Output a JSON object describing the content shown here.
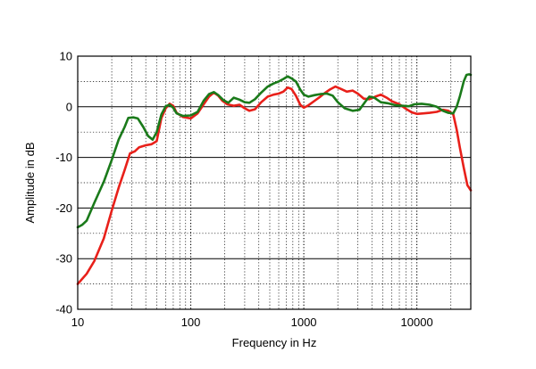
{
  "chart_data": {
    "type": "line",
    "title": "",
    "xlabel": "Frequency in Hz",
    "ylabel": "Amplitude in dB",
    "xscale": "log",
    "xlim": [
      10,
      30000
    ],
    "ylim": [
      -40,
      10
    ],
    "x_ticks": [
      10,
      100,
      1000,
      10000
    ],
    "x_tick_labels": [
      "10",
      "100",
      "1000",
      "10000"
    ],
    "y_ticks": [
      10,
      0,
      -10,
      -20,
      -30,
      -40
    ],
    "y_tick_labels": [
      "10",
      "0",
      "-10",
      "-20",
      "-30",
      "-40"
    ],
    "grid": true,
    "legend": "none",
    "series": [
      {
        "color": "#e8201a",
        "points": [
          [
            10,
            -35
          ],
          [
            12,
            -33
          ],
          [
            14,
            -30.5
          ],
          [
            17,
            -26
          ],
          [
            20,
            -20.5
          ],
          [
            23,
            -16
          ],
          [
            26,
            -12.5
          ],
          [
            29,
            -9.2
          ],
          [
            32,
            -8.8
          ],
          [
            35,
            -8.0
          ],
          [
            40,
            -7.6
          ],
          [
            45,
            -7.4
          ],
          [
            50,
            -6.8
          ],
          [
            55,
            -2.2
          ],
          [
            60,
            -0.3
          ],
          [
            65,
            0.6
          ],
          [
            70,
            0.2
          ],
          [
            75,
            -1.2
          ],
          [
            85,
            -2.0
          ],
          [
            100,
            -2.3
          ],
          [
            115,
            -1.3
          ],
          [
            130,
            0.5
          ],
          [
            145,
            2.0
          ],
          [
            160,
            2.8
          ],
          [
            175,
            2.2
          ],
          [
            190,
            1.2
          ],
          [
            210,
            0.5
          ],
          [
            240,
            0.2
          ],
          [
            270,
            0.4
          ],
          [
            300,
            -0.3
          ],
          [
            330,
            -0.8
          ],
          [
            370,
            -0.5
          ],
          [
            420,
            0.9
          ],
          [
            480,
            2.0
          ],
          [
            540,
            2.4
          ],
          [
            600,
            2.6
          ],
          [
            660,
            3.0
          ],
          [
            720,
            3.8
          ],
          [
            780,
            3.5
          ],
          [
            850,
            2.2
          ],
          [
            930,
            0.4
          ],
          [
            1000,
            -0.2
          ],
          [
            1100,
            0.3
          ],
          [
            1250,
            1.2
          ],
          [
            1400,
            2.0
          ],
          [
            1550,
            2.8
          ],
          [
            1700,
            3.4
          ],
          [
            1900,
            4.0
          ],
          [
            2100,
            3.6
          ],
          [
            2400,
            3.0
          ],
          [
            2700,
            3.2
          ],
          [
            3000,
            2.6
          ],
          [
            3400,
            1.6
          ],
          [
            3800,
            1.5
          ],
          [
            4300,
            2.0
          ],
          [
            4800,
            2.4
          ],
          [
            5400,
            1.8
          ],
          [
            6000,
            1.1
          ],
          [
            7000,
            0.5
          ],
          [
            8000,
            -0.4
          ],
          [
            9000,
            -1.1
          ],
          [
            10000,
            -1.4
          ],
          [
            11500,
            -1.3
          ],
          [
            13000,
            -1.2
          ],
          [
            15000,
            -1.0
          ],
          [
            17000,
            -0.6
          ],
          [
            19000,
            -0.8
          ],
          [
            21000,
            -1.5
          ],
          [
            22500,
            -4.5
          ],
          [
            24000,
            -8.0
          ],
          [
            26000,
            -12.0
          ],
          [
            28000,
            -15.5
          ],
          [
            30000,
            -16.5
          ]
        ]
      },
      {
        "color": "#1a7a1a",
        "points": [
          [
            10,
            -23.8
          ],
          [
            11,
            -23.3
          ],
          [
            12,
            -22.5
          ],
          [
            14,
            -19.0
          ],
          [
            17,
            -14.8
          ],
          [
            20,
            -10.5
          ],
          [
            23,
            -6.5
          ],
          [
            26,
            -4.0
          ],
          [
            28,
            -2.2
          ],
          [
            31,
            -2.1
          ],
          [
            34,
            -2.3
          ],
          [
            38,
            -4.0
          ],
          [
            42,
            -5.8
          ],
          [
            46,
            -6.5
          ],
          [
            50,
            -5.0
          ],
          [
            55,
            -1.5
          ],
          [
            60,
            0.1
          ],
          [
            65,
            0.4
          ],
          [
            70,
            -0.2
          ],
          [
            75,
            -1.3
          ],
          [
            85,
            -1.8
          ],
          [
            100,
            -1.7
          ],
          [
            115,
            -1.0
          ],
          [
            130,
            1.2
          ],
          [
            145,
            2.5
          ],
          [
            160,
            2.9
          ],
          [
            175,
            2.3
          ],
          [
            195,
            1.3
          ],
          [
            215,
            0.8
          ],
          [
            240,
            1.8
          ],
          [
            270,
            1.4
          ],
          [
            300,
            0.9
          ],
          [
            330,
            0.8
          ],
          [
            370,
            1.5
          ],
          [
            420,
            2.8
          ],
          [
            480,
            4.0
          ],
          [
            540,
            4.6
          ],
          [
            600,
            5.0
          ],
          [
            660,
            5.5
          ],
          [
            720,
            6.0
          ],
          [
            780,
            5.6
          ],
          [
            850,
            5.0
          ],
          [
            930,
            3.4
          ],
          [
            1000,
            2.4
          ],
          [
            1100,
            2.0
          ],
          [
            1250,
            2.3
          ],
          [
            1400,
            2.5
          ],
          [
            1600,
            2.6
          ],
          [
            1800,
            2.2
          ],
          [
            2000,
            0.9
          ],
          [
            2300,
            -0.3
          ],
          [
            2700,
            -0.8
          ],
          [
            3100,
            -0.6
          ],
          [
            3500,
            1.0
          ],
          [
            3800,
            2.0
          ],
          [
            4200,
            1.8
          ],
          [
            4800,
            0.9
          ],
          [
            5500,
            0.7
          ],
          [
            6500,
            0.3
          ],
          [
            7500,
            0.2
          ],
          [
            8500,
            0.1
          ],
          [
            9500,
            0.5
          ],
          [
            11000,
            0.6
          ],
          [
            13000,
            0.4
          ],
          [
            15000,
            0.0
          ],
          [
            17000,
            -0.8
          ],
          [
            19000,
            -1.2
          ],
          [
            21000,
            -1.3
          ],
          [
            22500,
            0.0
          ],
          [
            24000,
            2.0
          ],
          [
            26000,
            5.0
          ],
          [
            27500,
            6.3
          ],
          [
            29000,
            6.4
          ],
          [
            30000,
            6.3
          ]
        ]
      }
    ]
  }
}
